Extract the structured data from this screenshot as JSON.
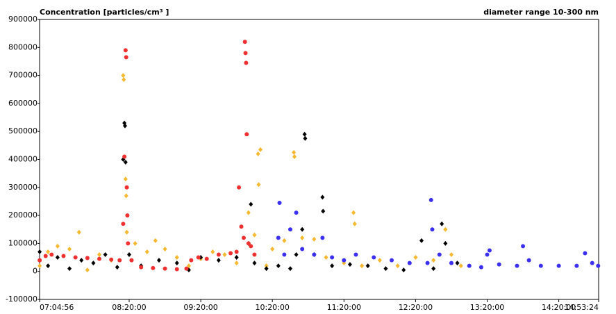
{
  "chart_data": {
    "type": "scatter",
    "title": "Concentration [particles/cm³ ]",
    "subtitle": "diameter range 10-300 nm",
    "xlim": [
      "07:04:56",
      "14:53:24"
    ],
    "xticks": [
      "07:04:56",
      "08:20:00",
      "09:20:00",
      "10:20:00",
      "11:20:00",
      "12:20:00",
      "13:20:00",
      "14:20:00",
      "14:53:24"
    ],
    "ylim": [
      -100000,
      900000
    ],
    "yticks": [
      -100000,
      0,
      100000,
      200000,
      300000,
      400000,
      500000,
      600000,
      700000,
      800000,
      900000
    ],
    "series": [
      {
        "color": "#f5b82e",
        "marker": "diamond",
        "x": [
          "07:05:00",
          "07:12:00",
          "07:20:00",
          "07:30:00",
          "07:38:00",
          "07:45:00",
          "07:55:00",
          "08:05:00",
          "08:15:00",
          "08:15:30",
          "08:17:00",
          "08:17:30",
          "08:18:00",
          "08:25:00",
          "08:35:00",
          "08:42:00",
          "08:50:00",
          "09:00:00",
          "09:10:00",
          "09:20:00",
          "09:30:00",
          "09:40:00",
          "09:50:00",
          "10:00:00",
          "10:05:00",
          "10:08:00",
          "10:10:00",
          "10:08:30",
          "10:15:00",
          "10:20:00",
          "10:30:00",
          "10:38:00",
          "10:38:30",
          "10:45:00",
          "10:55:00",
          "11:05:00",
          "11:20:00",
          "11:28:00",
          "11:29:00",
          "11:35:00",
          "11:50:00",
          "12:05:00",
          "12:20:00",
          "12:35:00",
          "12:45:00",
          "12:50:00",
          "12:58:00"
        ],
        "values": [
          20000,
          70000,
          90000,
          80000,
          140000,
          5000,
          60000,
          40000,
          700000,
          685000,
          330000,
          270000,
          140000,
          100000,
          70000,
          110000,
          80000,
          50000,
          20000,
          45000,
          70000,
          60000,
          30000,
          210000,
          130000,
          420000,
          435000,
          310000,
          20000,
          80000,
          110000,
          425000,
          410000,
          120000,
          115000,
          50000,
          30000,
          210000,
          170000,
          20000,
          40000,
          20000,
          50000,
          40000,
          150000,
          60000,
          20000
        ]
      },
      {
        "color": "#000000",
        "marker": "diamond",
        "x": [
          "07:05:00",
          "07:12:00",
          "07:20:00",
          "07:30:00",
          "07:40:00",
          "07:50:00",
          "08:00:00",
          "08:10:00",
          "08:15:00",
          "08:16:00",
          "08:16:30",
          "08:17:00",
          "08:20:00",
          "08:30:00",
          "08:45:00",
          "09:00:00",
          "09:10:00",
          "09:20:00",
          "09:35:00",
          "09:50:00",
          "10:00:00",
          "10:02:00",
          "10:05:00",
          "10:15:00",
          "10:25:00",
          "10:35:00",
          "10:40:00",
          "10:45:00",
          "10:47:00",
          "10:47:30",
          "10:55:00",
          "11:02:00",
          "11:02:30",
          "11:10:00",
          "11:25:00",
          "11:40:00",
          "11:55:00",
          "12:10:00",
          "12:25:00",
          "12:35:00",
          "12:42:00",
          "12:45:00",
          "12:55:00"
        ],
        "values": [
          70000,
          20000,
          50000,
          10000,
          40000,
          30000,
          60000,
          15000,
          400000,
          530000,
          520000,
          390000,
          60000,
          20000,
          40000,
          30000,
          5000,
          50000,
          40000,
          50000,
          100000,
          240000,
          30000,
          10000,
          20000,
          10000,
          60000,
          150000,
          490000,
          475000,
          60000,
          265000,
          215000,
          20000,
          25000,
          20000,
          10000,
          5000,
          110000,
          10000,
          170000,
          100000,
          30000
        ]
      },
      {
        "color": "#f03030",
        "marker": "circle",
        "x": [
          "07:05:00",
          "07:10:00",
          "07:15:00",
          "07:25:00",
          "07:35:00",
          "07:45:00",
          "07:55:00",
          "08:05:00",
          "08:12:00",
          "08:15:00",
          "08:16:00",
          "08:17:00",
          "08:17:30",
          "08:18:00",
          "08:18:30",
          "08:19:00",
          "08:22:00",
          "08:30:00",
          "08:40:00",
          "08:50:00",
          "09:00:00",
          "09:08:00",
          "09:12:00",
          "09:18:00",
          "09:25:00",
          "09:35:00",
          "09:45:00",
          "09:50:00",
          "09:52:00",
          "09:54:00",
          "09:56:00",
          "09:57:00",
          "09:57:30",
          "09:58:00",
          "09:58:30",
          "10:00:00",
          "10:02:00",
          "10:05:00"
        ],
        "values": [
          40000,
          55000,
          60000,
          55000,
          50000,
          48000,
          45000,
          42000,
          40000,
          170000,
          410000,
          790000,
          765000,
          300000,
          200000,
          100000,
          40000,
          15000,
          12000,
          10000,
          8000,
          10000,
          40000,
          50000,
          45000,
          60000,
          65000,
          70000,
          300000,
          160000,
          120000,
          820000,
          780000,
          745000,
          490000,
          100000,
          90000,
          60000
        ]
      },
      {
        "color": "#3b2ff0",
        "marker": "circle",
        "x": [
          "10:25:00",
          "10:26:00",
          "10:30:00",
          "10:35:00",
          "10:40:00",
          "10:45:00",
          "10:55:00",
          "11:02:00",
          "11:10:00",
          "11:20:00",
          "11:30:00",
          "11:45:00",
          "12:00:00",
          "12:15:00",
          "12:30:00",
          "12:33:00",
          "12:34:00",
          "12:40:00",
          "12:50:00",
          "13:05:00",
          "13:15:00",
          "13:20:00",
          "13:22:00",
          "13:30:00",
          "13:45:00",
          "13:50:00",
          "13:55:00",
          "14:05:00",
          "14:20:00",
          "14:35:00",
          "14:42:00",
          "14:48:00",
          "14:53:00"
        ],
        "values": [
          120000,
          245000,
          60000,
          150000,
          210000,
          80000,
          60000,
          120000,
          50000,
          40000,
          60000,
          50000,
          40000,
          30000,
          30000,
          255000,
          150000,
          60000,
          30000,
          20000,
          15000,
          60000,
          75000,
          25000,
          20000,
          90000,
          40000,
          20000,
          20000,
          20000,
          65000,
          30000,
          20000
        ]
      }
    ]
  }
}
